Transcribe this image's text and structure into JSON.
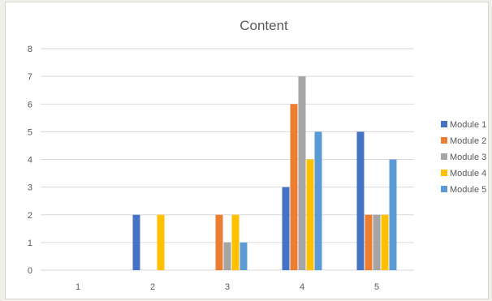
{
  "chart_data": {
    "type": "bar",
    "title": "Content",
    "categories": [
      "1",
      "2",
      "3",
      "4",
      "5"
    ],
    "ylim": [
      0,
      8
    ],
    "yticks": [
      0,
      1,
      2,
      3,
      4,
      5,
      6,
      7,
      8
    ],
    "grid": true,
    "legend_position": "right",
    "series": [
      {
        "name": "Module 1",
        "color": "#4472c4",
        "values": [
          0,
          2,
          0,
          3,
          5
        ]
      },
      {
        "name": "Module 2",
        "color": "#ed7d31",
        "values": [
          0,
          0,
          2,
          6,
          2
        ]
      },
      {
        "name": "Module 3",
        "color": "#a5a5a5",
        "values": [
          0,
          0,
          1,
          7,
          2
        ]
      },
      {
        "name": "Module 4",
        "color": "#ffc000",
        "values": [
          0,
          2,
          2,
          4,
          2
        ]
      },
      {
        "name": "Module 5",
        "color": "#5b9bd5",
        "values": [
          0,
          0,
          1,
          5,
          4
        ]
      }
    ]
  }
}
